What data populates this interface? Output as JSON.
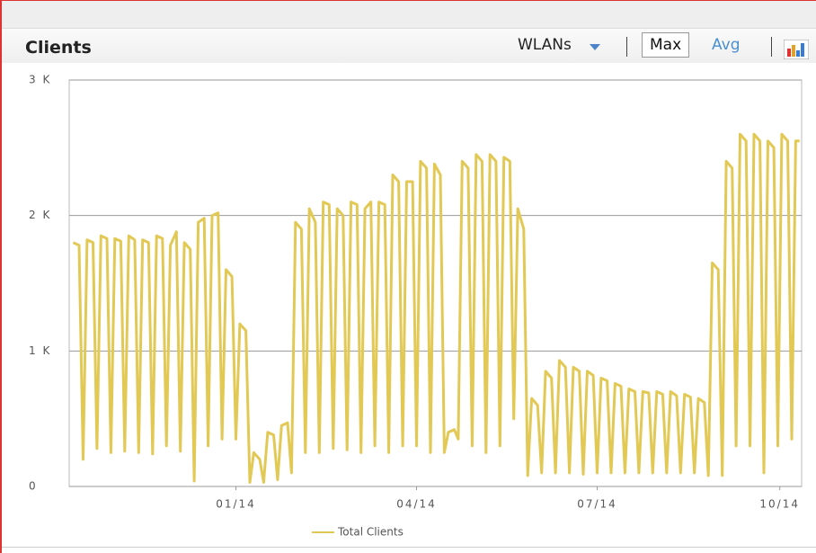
{
  "header": {
    "title": "Clients",
    "controls": [
      "WLANs",
      "Max",
      "Avg"
    ]
  },
  "chart_data": {
    "type": "line",
    "x": [
      2,
      5,
      7,
      9,
      12,
      14,
      16,
      19,
      21,
      23,
      26,
      28,
      30,
      33,
      35,
      37,
      40,
      42,
      44,
      47,
      49,
      51,
      54,
      56,
      58,
      61,
      63,
      65,
      68,
      70,
      72,
      75,
      77,
      79,
      82,
      84,
      86,
      89,
      91,
      93,
      96,
      98,
      100,
      103,
      105,
      107,
      110,
      112,
      114,
      117,
      119,
      121,
      124,
      126,
      128,
      131,
      133,
      135,
      138,
      140,
      142,
      145,
      147,
      149,
      152,
      154,
      156,
      159,
      161,
      163,
      166,
      168,
      170,
      173,
      175,
      177,
      180,
      182,
      184,
      187,
      189,
      191,
      194,
      196,
      198,
      201,
      203,
      205,
      208,
      210,
      212,
      215,
      217,
      219,
      222,
      224,
      226,
      229,
      231,
      233,
      236,
      238,
      240,
      243,
      245,
      247,
      250,
      252,
      254,
      257,
      259,
      261,
      264,
      266,
      268,
      271,
      273,
      275,
      278,
      280,
      282,
      285,
      287,
      289,
      292,
      294,
      296,
      299,
      301,
      303,
      306,
      308,
      310,
      313,
      315,
      317,
      320,
      322,
      324,
      327,
      329,
      331,
      334,
      336,
      338,
      341,
      343,
      345,
      348,
      350,
      352,
      355,
      357,
      359,
      362,
      364,
      366,
      368
    ],
    "series": [
      {
        "name": "Total Clients",
        "color": "#e2c955",
        "values": [
          1800,
          1780,
          200,
          1820,
          1800,
          280,
          1850,
          1830,
          250,
          1830,
          1810,
          260,
          1850,
          1820,
          250,
          1820,
          1800,
          240,
          1850,
          1830,
          300,
          1780,
          1880,
          260,
          1800,
          1750,
          40,
          1950,
          1980,
          300,
          2000,
          2020,
          350,
          1600,
          1550,
          350,
          1200,
          1150,
          30,
          250,
          200,
          30,
          400,
          380,
          50,
          450,
          470,
          100,
          1950,
          1900,
          250,
          2050,
          1950,
          250,
          2100,
          2080,
          280,
          2050,
          2000,
          270,
          2100,
          2080,
          250,
          2050,
          2100,
          300,
          2100,
          2080,
          250,
          2300,
          2250,
          300,
          2250,
          2250,
          300,
          2400,
          2350,
          250,
          2380,
          2300,
          250,
          400,
          420,
          350,
          2400,
          2350,
          300,
          2450,
          2400,
          250,
          2450,
          2400,
          300,
          2430,
          2400,
          500,
          2050,
          1900,
          80,
          650,
          600,
          100,
          850,
          800,
          100,
          930,
          880,
          100,
          880,
          850,
          90,
          850,
          820,
          100,
          800,
          780,
          100,
          760,
          740,
          100,
          720,
          700,
          100,
          700,
          690,
          100,
          700,
          680,
          100,
          700,
          670,
          100,
          680,
          660,
          100,
          650,
          620,
          80,
          1650,
          1600,
          80,
          2400,
          2350,
          300,
          2600,
          2550,
          300,
          2600,
          2550,
          100,
          2550,
          2500,
          300,
          2600,
          2550,
          350,
          2550,
          2550
        ]
      }
    ],
    "xlim": [
      0,
      369
    ],
    "xticks": [
      {
        "value": 84,
        "label": "01/14"
      },
      {
        "value": 175,
        "label": "04/14"
      },
      {
        "value": 266,
        "label": "07/14"
      },
      {
        "value": 358,
        "label": "10/14"
      }
    ],
    "ylim": [
      0,
      3000
    ],
    "yticks": [
      {
        "value": 0,
        "label": "0"
      },
      {
        "value": 1000,
        "label": "1 K"
      },
      {
        "value": 2000,
        "label": "2 K"
      },
      {
        "value": 3000,
        "label": "3 K"
      }
    ],
    "grid": true
  }
}
